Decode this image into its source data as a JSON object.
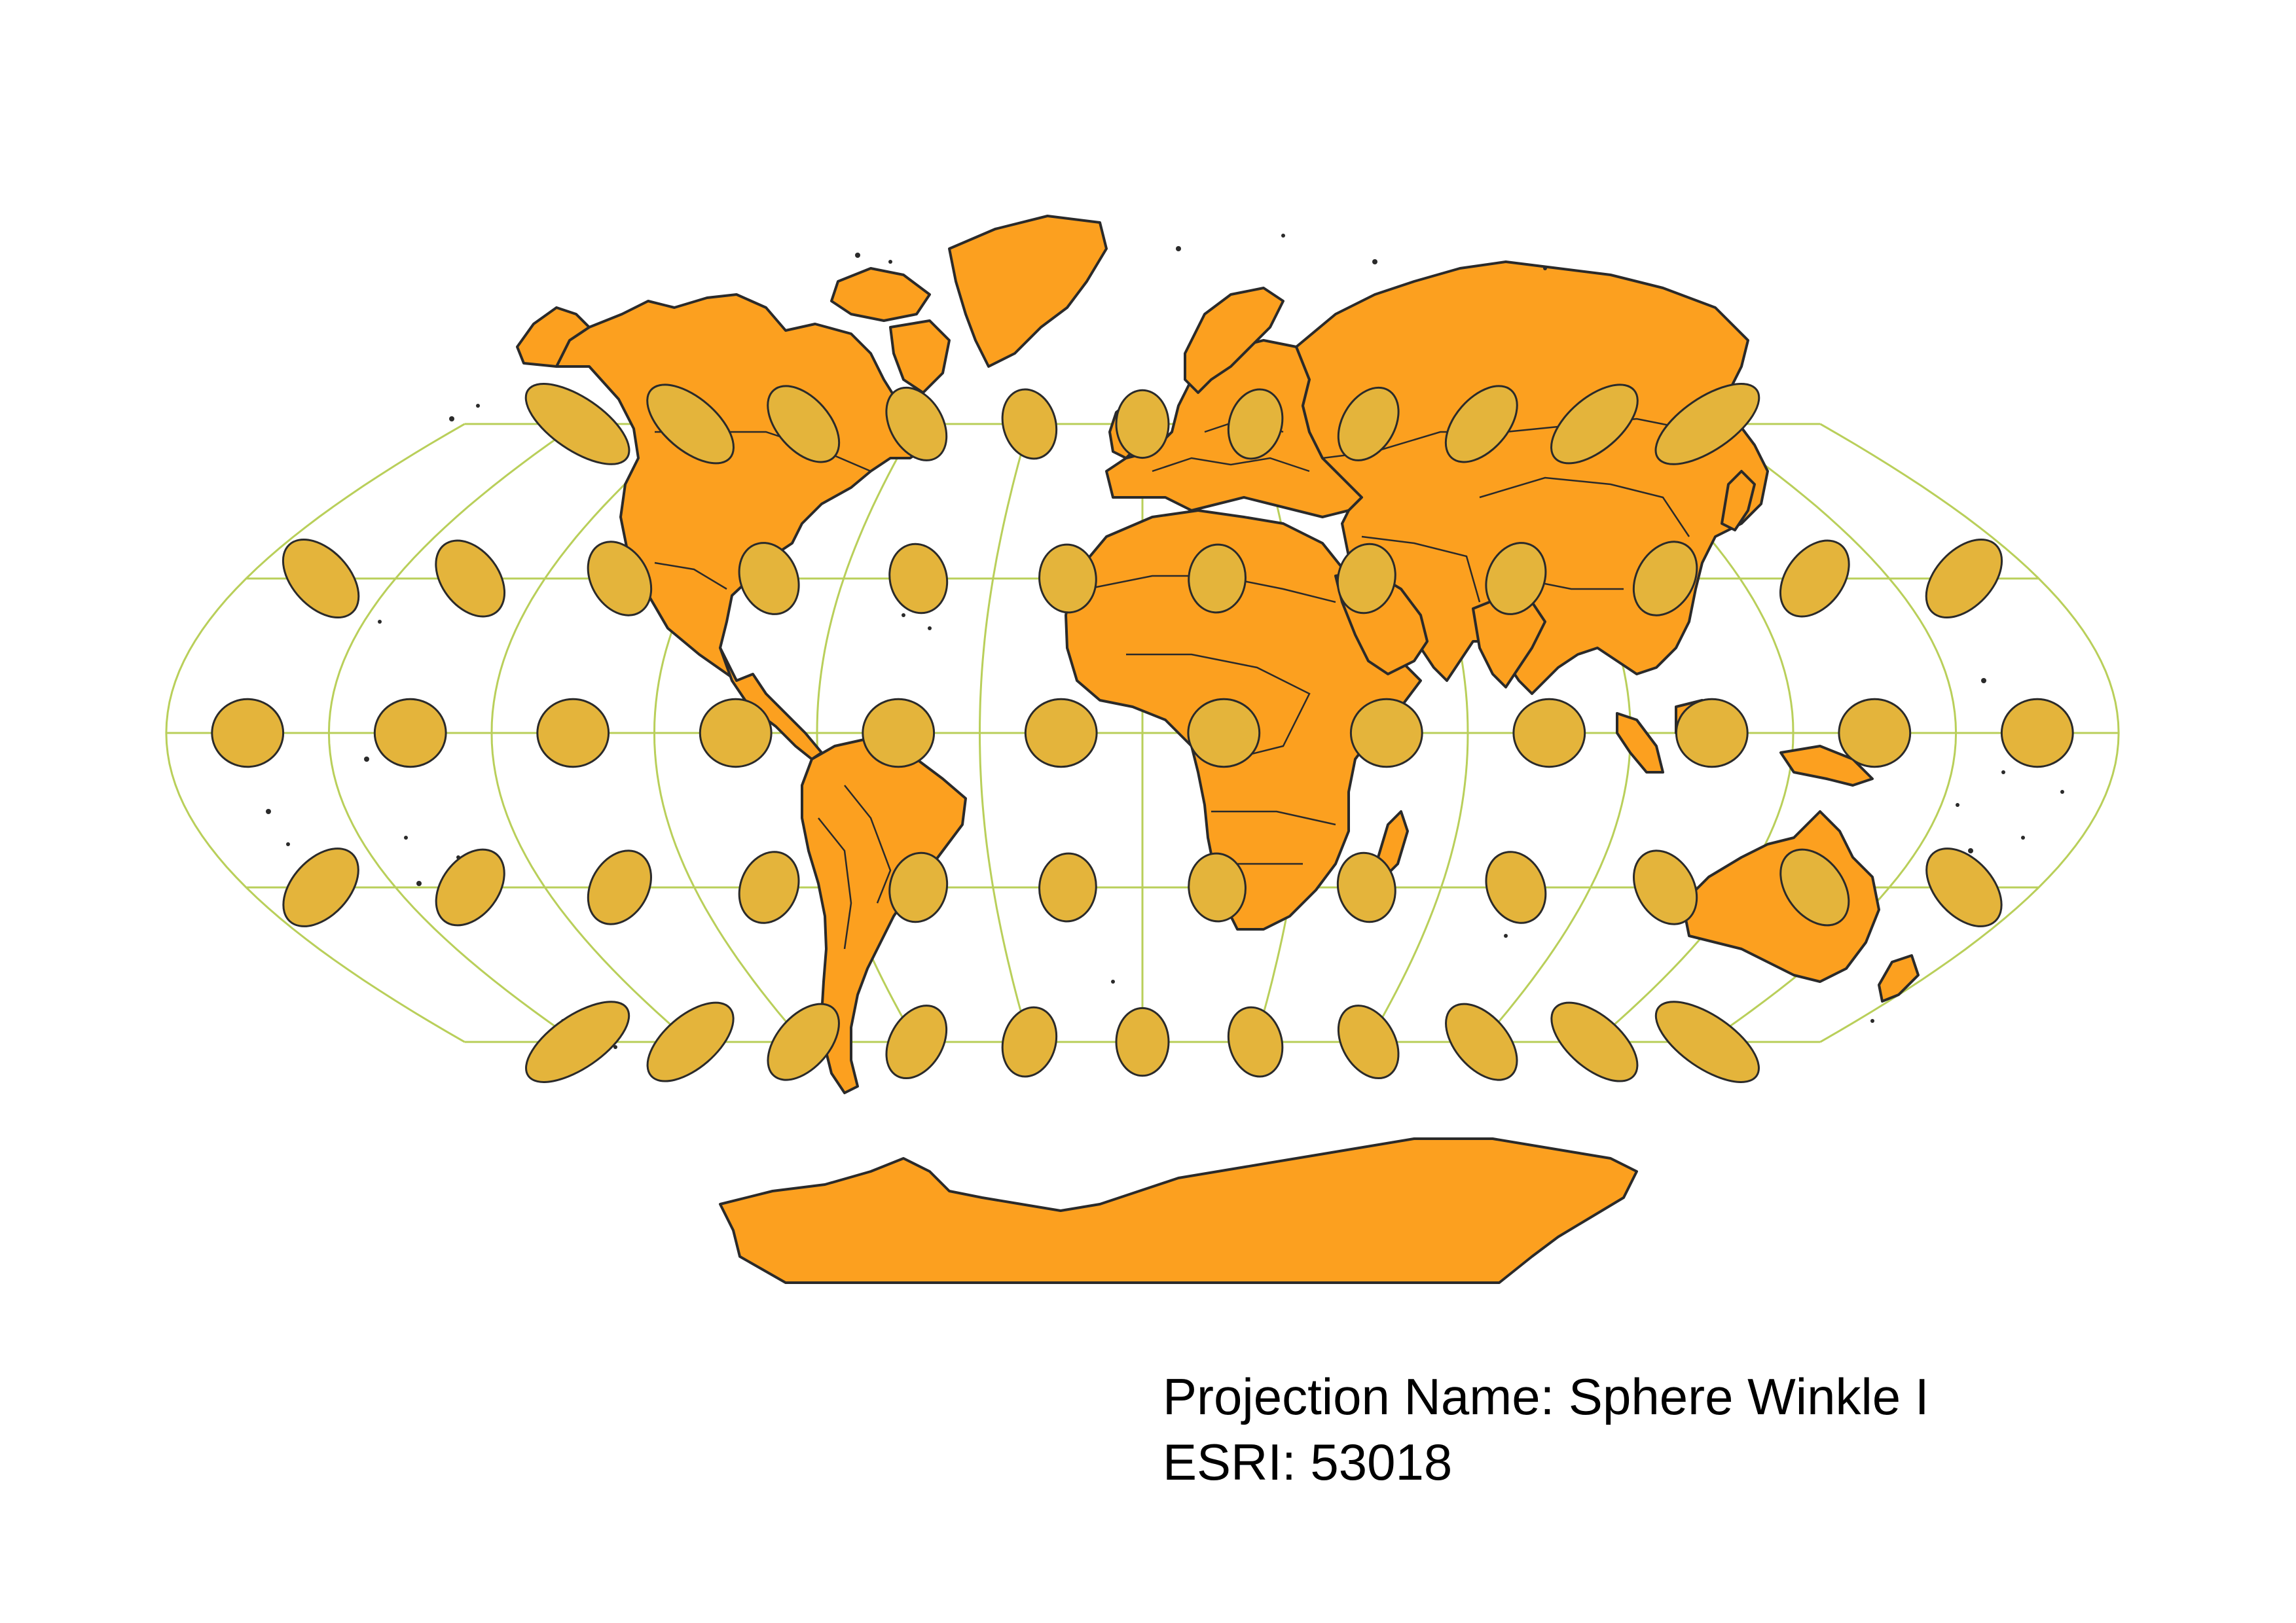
{
  "projection": {
    "name_line": "Projection Name: Sphere Winkle I",
    "code_line": "ESRI: 53018"
  },
  "map": {
    "land_fill": "#fca01f",
    "outline_color": "#2a2a2a",
    "graticule_color": "#b9cf5a",
    "indicatrix_fill": "#e4b43b",
    "graticule_longitudes": [
      -180,
      -150,
      -120,
      -90,
      -60,
      -30,
      0,
      30,
      60,
      90,
      120,
      150,
      180
    ],
    "graticule_latitudes": [
      -90,
      -60,
      -30,
      0,
      30,
      60,
      90
    ],
    "indicatrix_latitudes": [
      60,
      30,
      0,
      -30,
      -60
    ],
    "indicatrix_longitudes_high_lat": [
      -150,
      -120,
      -90,
      -60,
      -30,
      0,
      30,
      60,
      90,
      120,
      150
    ],
    "indicatrix_longitudes_low_lat": [
      -165,
      -135,
      -105,
      -75,
      -45,
      -15,
      15,
      45,
      75,
      105,
      135,
      165
    ]
  }
}
